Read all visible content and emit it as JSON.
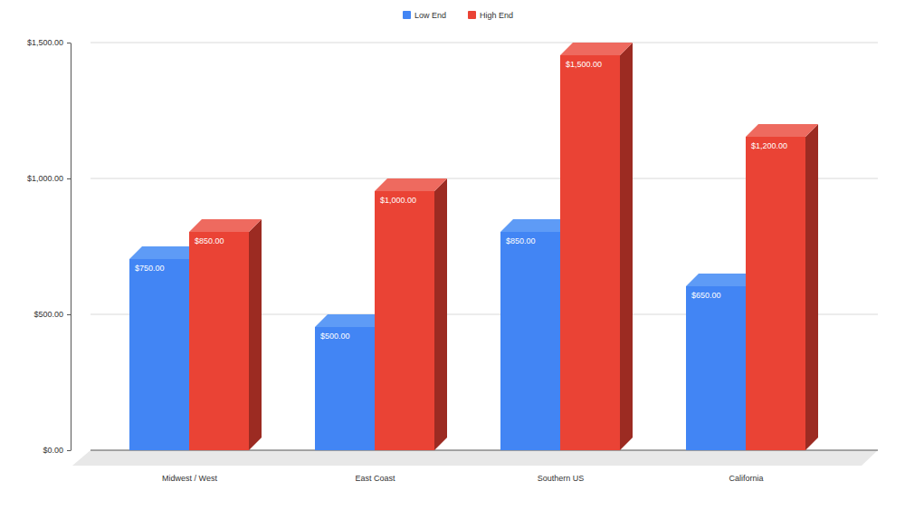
{
  "chart_data": {
    "type": "bar",
    "categories": [
      "Midwest / West",
      "East Coast",
      "Southern US",
      "California"
    ],
    "series": [
      {
        "name": "Low End",
        "color": "#4285f4",
        "values": [
          750,
          500,
          850,
          650
        ],
        "value_labels": [
          "$750.00",
          "$500.00",
          "$850.00",
          "$650.00"
        ]
      },
      {
        "name": "High End",
        "color": "#ea4335",
        "values": [
          850,
          1000,
          1500,
          1200
        ],
        "value_labels": [
          "$850.00",
          "$1,000.00",
          "$1,500.00",
          "$1,200.00"
        ]
      }
    ],
    "ylim": [
      0,
      1500
    ],
    "yticks": [
      {
        "value": 0,
        "label": "$0.00"
      },
      {
        "value": 500,
        "label": "$500.00"
      },
      {
        "value": 1000,
        "label": "$1,000.00"
      },
      {
        "value": 1500,
        "label": "$1,500.00"
      }
    ],
    "grid": true,
    "legend": "top",
    "data_labels": true
  }
}
